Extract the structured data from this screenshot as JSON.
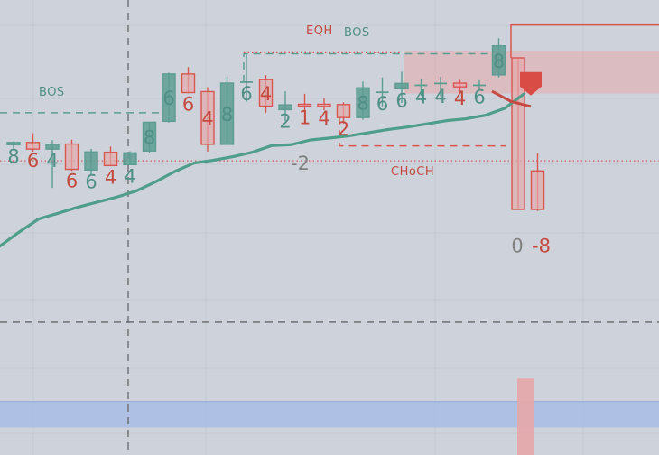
{
  "chart_data": {
    "type": "candlestick",
    "title": "",
    "xlabel": "",
    "ylabel": "",
    "grid": true,
    "colors": {
      "background": "#ced3db",
      "bull": "#5d9c92",
      "bear": "#d95650",
      "ma": "#4e9e8a",
      "bull_label": "#4f8f85",
      "bear_label": "#c44a3f",
      "neutral_label": "#808080",
      "supply_zone": "#e4a9ab",
      "demand_zone": "#a8bde6"
    },
    "candles": [
      {
        "o": 18.5,
        "h": 19.6,
        "l": 17.2,
        "c": 19.2,
        "label": "8"
      },
      {
        "o": 19.2,
        "h": 22.1,
        "l": 16.3,
        "c": 17.1,
        "label": "6"
      },
      {
        "o": 17.1,
        "h": 19.9,
        "l": 4.8,
        "c": 18.6,
        "label": "4"
      },
      {
        "o": 18.7,
        "h": 20.1,
        "l": 10.2,
        "c": 10.7,
        "label": "6"
      },
      {
        "o": 10.5,
        "h": 17.2,
        "l": 8.9,
        "c": 16.2,
        "label": "6"
      },
      {
        "o": 16.1,
        "h": 17.9,
        "l": 11.9,
        "c": 11.9,
        "label": "4"
      },
      {
        "o": 12.2,
        "h": 16.4,
        "l": 12.0,
        "c": 15.9,
        "label": "4"
      },
      {
        "o": 16.5,
        "h": 25.6,
        "l": 16.0,
        "c": 25.6,
        "label": "8"
      },
      {
        "o": 25.9,
        "h": 41.3,
        "l": 25.5,
        "c": 40.9,
        "label": "6"
      },
      {
        "o": 40.9,
        "h": 43.1,
        "l": 34.8,
        "c": 35.0,
        "label": "6"
      },
      {
        "o": 35.3,
        "h": 36.7,
        "l": 16.3,
        "c": 18.6,
        "label": "4"
      },
      {
        "o": 18.6,
        "h": 40.0,
        "l": 18.6,
        "c": 38.0,
        "label": "8"
      },
      {
        "o": 38.3,
        "h": 47.0,
        "l": 32.0,
        "c": 38.3,
        "label": "6"
      },
      {
        "o": 39.1,
        "h": 40.5,
        "l": 28.6,
        "c": 30.7,
        "label": "4"
      },
      {
        "o": 29.6,
        "h": 35.4,
        "l": 26.0,
        "c": 31.1,
        "label": "2"
      },
      {
        "o": 31.3,
        "h": 34.6,
        "l": 29.2,
        "c": 30.7,
        "label": "1"
      },
      {
        "o": 31.3,
        "h": 33.2,
        "l": 29.4,
        "c": 30.6,
        "label": "4"
      },
      {
        "o": 31.2,
        "h": 31.9,
        "l": 25.2,
        "c": 27.1,
        "label": "2"
      },
      {
        "o": 27.1,
        "h": 38.5,
        "l": 26.4,
        "c": 36.5,
        "label": "8"
      },
      {
        "o": 35.1,
        "h": 39.8,
        "l": 30.6,
        "c": 35.1,
        "label": "6"
      },
      {
        "o": 36.2,
        "h": 41.6,
        "l": 31.7,
        "c": 37.9,
        "label": "6"
      },
      {
        "o": 37.3,
        "h": 39.2,
        "l": 34.0,
        "c": 37.3,
        "label": "4"
      },
      {
        "o": 37.5,
        "h": 40.0,
        "l": 33.8,
        "c": 37.9,
        "label": "4"
      },
      {
        "o": 38.0,
        "h": 39.0,
        "l": 34.9,
        "c": 36.8,
        "label": "4"
      },
      {
        "o": 37.3,
        "h": 38.9,
        "l": 35.6,
        "c": 37.3,
        "label": "6"
      },
      {
        "o": 40.6,
        "h": 52.2,
        "l": 39.8,
        "c": 49.8,
        "label": "8"
      },
      {
        "o": 46.0,
        "h": 46.0,
        "l": -2.0,
        "c": -2.0,
        "label": "0"
      },
      {
        "o": 10.2,
        "h": 15.8,
        "l": -2.5,
        "c": -2.0,
        "label": "-8"
      }
    ],
    "moving_average": [
      -13.6,
      -9.1,
      -5.0,
      -3.2,
      -1.3,
      0.3,
      1.9,
      3.8,
      6.7,
      10.0,
      12.7,
      13.6,
      14.7,
      16.1,
      18.2,
      18.5,
      20.0,
      20.6,
      21.3,
      22.3,
      23.3,
      24.1,
      25.1,
      26.1,
      26.7,
      27.8,
      30.0,
      34.6
    ],
    "annotations": [
      {
        "text": "BOS",
        "kind": "bull_label"
      },
      {
        "text": "EQH",
        "kind": "bear_label"
      },
      {
        "text": "BOS",
        "kind": "bull_label"
      },
      {
        "text": "CHoCH",
        "kind": "bear_label"
      },
      {
        "text": "-2",
        "kind": "neutral_label"
      }
    ]
  }
}
